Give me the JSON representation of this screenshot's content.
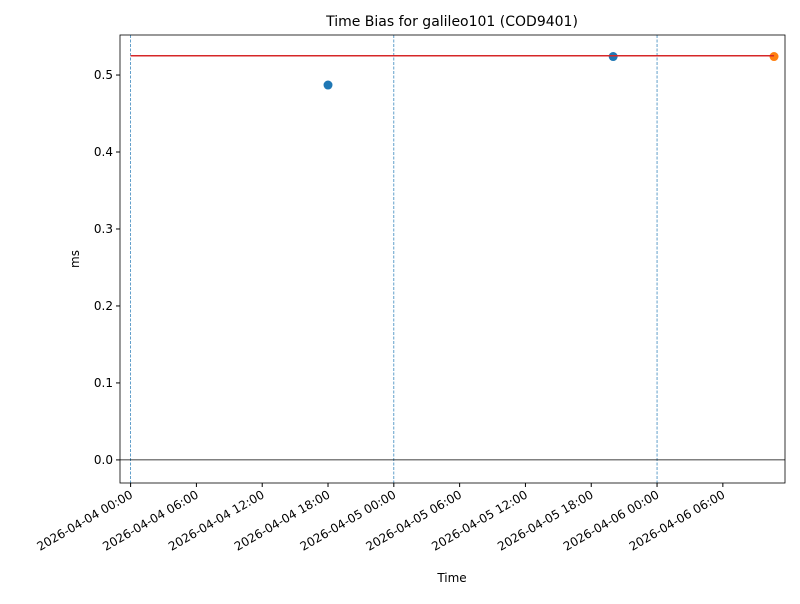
{
  "chart_data": {
    "type": "scatter",
    "title": "Time Bias for galileo101 (COD9401)",
    "x_label": "Time",
    "y_label": "ms",
    "xlim": [
      "2026-04-03 23:02",
      "2026-04-06 11:40"
    ],
    "xticks": [
      "2026-04-04 00:00",
      "2026-04-04 06:00",
      "2026-04-04 12:00",
      "2026-04-04 18:00",
      "2026-04-05 00:00",
      "2026-04-05 06:00",
      "2026-04-05 12:00",
      "2026-04-05 18:00",
      "2026-04-06 00:00",
      "2026-04-06 06:00"
    ],
    "ylim": [
      -0.03,
      0.552
    ],
    "yticks": [
      {
        "value": 0,
        "label": "0.0"
      },
      0.1,
      0.2,
      0.3,
      0.4,
      0.5
    ],
    "series": [
      {
        "type": "scatter",
        "color": "#1f77b4",
        "x": [
          "2026-04-04 18:00",
          "2026-04-05 20:00"
        ],
        "values": [
          0.487,
          0.524
        ]
      },
      {
        "type": "scatter",
        "color": "#ff7f0e",
        "x": [
          "2026-04-06 10:40"
        ],
        "values": [
          0.524
        ]
      },
      {
        "type": "line",
        "color": "#d62728",
        "x": [
          "2026-04-04 00:00",
          "2026-04-06 10:40"
        ],
        "values": [
          0.525,
          0.525
        ]
      }
    ],
    "vlines": {
      "color": "#1f77b4",
      "x": [
        "2026-04-04 00:00",
        "2026-04-05 00:00",
        "2026-04-06 00:00"
      ]
    },
    "hline": {
      "color": "#000000",
      "value": 0
    }
  }
}
